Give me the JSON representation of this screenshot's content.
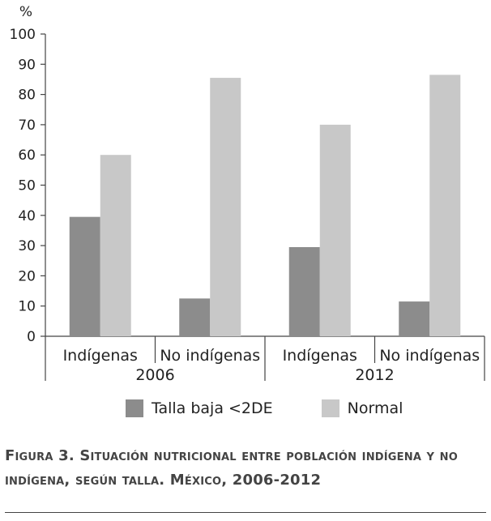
{
  "chart_data": {
    "type": "bar",
    "ylabel": "%",
    "ylim": [
      0,
      100
    ],
    "yticks": [
      0,
      10,
      20,
      30,
      40,
      50,
      60,
      70,
      80,
      90,
      100
    ],
    "groups": [
      "2006",
      "2012"
    ],
    "categories": [
      "Indígenas",
      "No indígenas",
      "Indígenas",
      "No indígenas"
    ],
    "category_group": [
      0,
      0,
      1,
      1
    ],
    "series": [
      {
        "name": "Talla baja <2DE",
        "color": "#8c8c8c",
        "values": [
          39.5,
          12.5,
          29.5,
          11.5
        ]
      },
      {
        "name": "Normal",
        "color": "#c8c8c8",
        "values": [
          60,
          85.5,
          70,
          86.5
        ]
      }
    ],
    "legend_position": "bottom"
  },
  "caption": "Figura 3. Situación nutricional entre población indígena y no indígena, según talla. México, 2006-2012"
}
